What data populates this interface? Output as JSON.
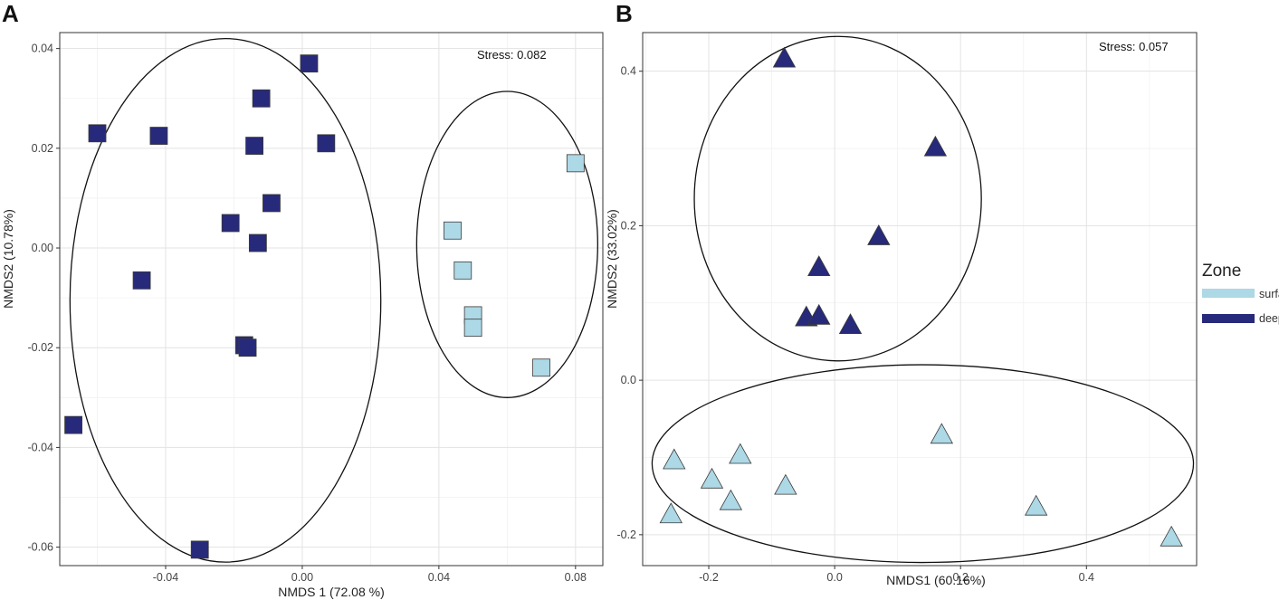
{
  "chart_data": [
    {
      "type": "scatter",
      "panel": "A",
      "stress": "Stress: 0.082",
      "xlabel": "NMDS 1 (72.08 %)",
      "ylabel": "NMDS2 (10.78%)",
      "xlim": [
        -0.071,
        0.088
      ],
      "ylim": [
        -0.0637,
        0.0432
      ],
      "xticks": [
        -0.04,
        0.0,
        0.04,
        0.08
      ],
      "xtick_labels": [
        "-0.04",
        "0.00",
        "0.04",
        "0.08"
      ],
      "yticks": [
        -0.06,
        -0.04,
        -0.02,
        0.0,
        0.02,
        0.04
      ],
      "ytick_labels": [
        "-0.06",
        "-0.04",
        "-0.02",
        "0.00",
        "0.02",
        "0.04"
      ],
      "marker": "square",
      "series": [
        {
          "name": "deep",
          "points": [
            [
              0.002,
              0.037
            ],
            [
              -0.012,
              0.03
            ],
            [
              -0.06,
              0.023
            ],
            [
              -0.042,
              0.0225
            ],
            [
              -0.014,
              0.0205
            ],
            [
              0.007,
              0.021
            ],
            [
              -0.009,
              0.009
            ],
            [
              -0.021,
              0.005
            ],
            [
              -0.013,
              0.001
            ],
            [
              -0.047,
              -0.0065
            ],
            [
              -0.017,
              -0.0195
            ],
            [
              -0.016,
              -0.02
            ],
            [
              -0.067,
              -0.0355
            ],
            [
              -0.03,
              -0.0605
            ]
          ]
        },
        {
          "name": "surface",
          "points": [
            [
              0.08,
              0.017
            ],
            [
              0.044,
              0.0035
            ],
            [
              0.047,
              -0.0045
            ],
            [
              0.05,
              -0.0135
            ],
            [
              0.05,
              -0.016
            ],
            [
              0.07,
              -0.024
            ]
          ]
        }
      ],
      "ellipses": [
        {
          "group": "deep",
          "cx": -0.0225,
          "cy": -0.0105,
          "rx": 0.0455,
          "ry": 0.0525
        },
        {
          "group": "surface",
          "cx": 0.06,
          "cy": 0.0007,
          "rx": 0.0265,
          "ry": 0.0307
        }
      ]
    },
    {
      "type": "scatter",
      "panel": "B",
      "stress": "Stress: 0.057",
      "xlabel": "NMDS1 (60.16%)",
      "ylabel": "NMDS2 (33.02%)",
      "xlim": [
        -0.305,
        0.575
      ],
      "ylim": [
        -0.24,
        0.45
      ],
      "xticks": [
        -0.2,
        0.0,
        0.2,
        0.4
      ],
      "xtick_labels": [
        "-0.2",
        "0.0",
        "0.2",
        "0.4"
      ],
      "yticks": [
        -0.2,
        0.0,
        0.2,
        0.4
      ],
      "ytick_labels": [
        "-0.2",
        "0.0",
        "0.2",
        "0.4"
      ],
      "marker": "triangle",
      "series": [
        {
          "name": "deep",
          "points": [
            [
              -0.08,
              0.415
            ],
            [
              0.16,
              0.3
            ],
            [
              0.07,
              0.185
            ],
            [
              -0.025,
              0.145
            ],
            [
              -0.045,
              0.08
            ],
            [
              -0.025,
              0.082
            ],
            [
              0.025,
              0.07
            ]
          ]
        },
        {
          "name": "surface",
          "points": [
            [
              -0.255,
              -0.105
            ],
            [
              -0.15,
              -0.098
            ],
            [
              -0.195,
              -0.13
            ],
            [
              -0.165,
              -0.158
            ],
            [
              -0.078,
              -0.138
            ],
            [
              0.17,
              -0.072
            ],
            [
              0.32,
              -0.165
            ],
            [
              -0.26,
              -0.175
            ],
            [
              0.535,
              -0.205
            ]
          ]
        }
      ],
      "ellipses": [
        {
          "group": "deep",
          "cx": 0.005,
          "cy": 0.235,
          "rx": 0.228,
          "ry": 0.21
        },
        {
          "group": "surface",
          "cx": 0.14,
          "cy": -0.108,
          "rx": 0.43,
          "ry": 0.128
        }
      ]
    }
  ],
  "legend": {
    "title": "Zone",
    "items": [
      {
        "label": "surface",
        "color": "#add8e6"
      },
      {
        "label": "deep",
        "color": "#27297a"
      }
    ]
  },
  "colors": {
    "deep": "#27297a",
    "surface": "#add8e6",
    "marker_edge": "#3a3a3a"
  }
}
